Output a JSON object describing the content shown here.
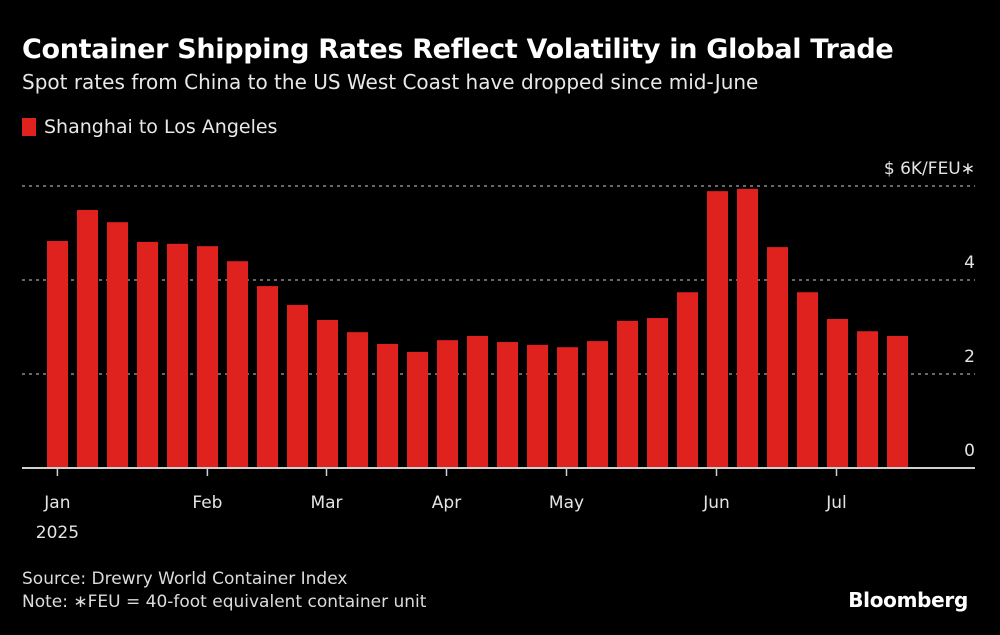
{
  "header": {
    "title": "Container Shipping Rates Reflect Volatility in Global Trade",
    "subtitle": "Spot rates from China to the US West Coast have dropped since mid-June"
  },
  "footer": {
    "source": "Source: Drewry World Container Index",
    "note": "Note: ∗FEU = 40-foot equivalent container unit",
    "brand": "Bloomberg"
  },
  "colors": {
    "background": "#000000",
    "bar": "#e0221e",
    "grid": "#8a8a8a",
    "axis": "#cfcfcf"
  },
  "chart_data": {
    "type": "bar",
    "title": "Container Shipping Rates Reflect Volatility in Global Trade",
    "subtitle": "Spot rates from China to the US West Coast have dropped since mid-June",
    "xlabel": "",
    "ylabel": "$K/FEU*",
    "y_unit_label": "$ 6K/FEU∗",
    "ylim": [
      0,
      6
    ],
    "yticks": [
      {
        "value": 0,
        "label": "0"
      },
      {
        "value": 2,
        "label": "2"
      },
      {
        "value": 4,
        "label": "4"
      },
      {
        "value": 6,
        "label": "$ 6K/FEU∗"
      }
    ],
    "grid": true,
    "legend_position": "top-left",
    "x_ticks": [
      {
        "index": 0.33,
        "label": "Jan",
        "sublabel": "2025"
      },
      {
        "index": 5.33,
        "label": "Feb",
        "sublabel": ""
      },
      {
        "index": 9.3,
        "label": "Mar",
        "sublabel": ""
      },
      {
        "index": 13.3,
        "label": "Apr",
        "sublabel": ""
      },
      {
        "index": 17.3,
        "label": "May",
        "sublabel": ""
      },
      {
        "index": 22.3,
        "label": "Jun",
        "sublabel": ""
      },
      {
        "index": 26.3,
        "label": "Jul",
        "sublabel": ""
      }
    ],
    "series": [
      {
        "name": "Shanghai to Los Angeles",
        "color": "#e0221e",
        "values": [
          4.83,
          5.49,
          5.23,
          4.81,
          4.77,
          4.72,
          4.4,
          3.87,
          3.47,
          3.15,
          2.89,
          2.64,
          2.47,
          2.72,
          2.81,
          2.68,
          2.62,
          2.57,
          2.7,
          3.13,
          3.19,
          3.74,
          5.89,
          5.94,
          4.7,
          3.74,
          3.17,
          2.91,
          2.81
        ]
      }
    ]
  }
}
